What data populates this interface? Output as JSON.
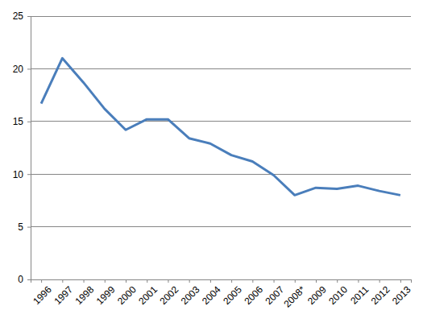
{
  "chart_data": {
    "type": "line",
    "categories": [
      "1996",
      "1997",
      "1998",
      "1999",
      "2000",
      "2001",
      "2002",
      "2003",
      "2004",
      "2005",
      "2006",
      "2007",
      "2008*",
      "2009",
      "2010",
      "2011",
      "2012",
      "2013"
    ],
    "values": [
      16.7,
      21.0,
      18.7,
      16.2,
      14.2,
      15.2,
      15.2,
      13.4,
      12.9,
      11.8,
      11.2,
      9.9,
      8.0,
      8.7,
      8.6,
      8.9,
      8.4,
      8.0
    ],
    "color": "#4a7ebb",
    "ylim": [
      0,
      25
    ],
    "yticks": [
      0,
      5,
      10,
      15,
      20,
      25
    ],
    "grid": true
  }
}
